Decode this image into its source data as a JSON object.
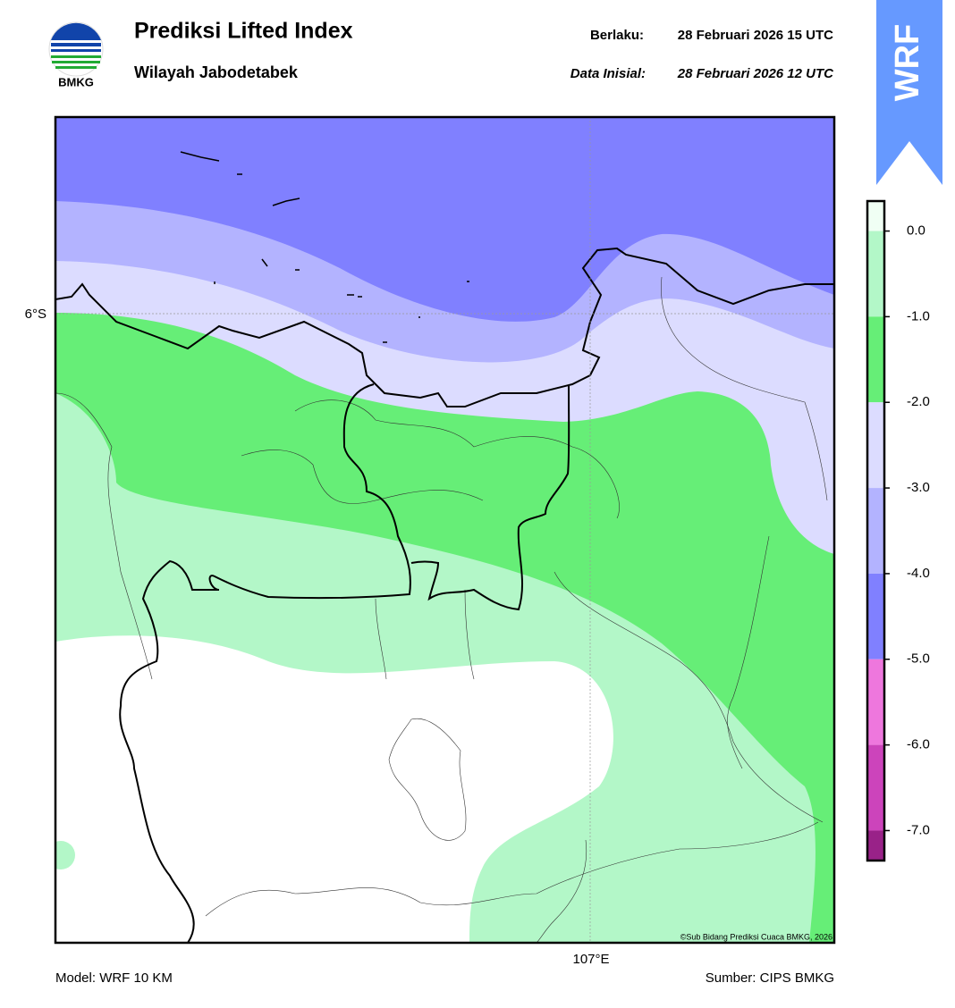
{
  "header": {
    "title": "Prediksi Lifted Index",
    "subtitle": "Wilayah Jabodetabek",
    "logo_text": "BMKG",
    "valid_label": "Berlaku:",
    "valid_time": "28 Februari 2026 15 UTC",
    "init_label": "Data Inisial:",
    "init_time": "28 Februari 2026 12 UTC",
    "badge": "WRF"
  },
  "map": {
    "lat_label": "6°S",
    "lon_label": "107°E",
    "copyright": "©Sub Bidang Prediksi Cuaca BMKG, 2026"
  },
  "colorbar": {
    "bins": [
      0.35,
      0,
      -1,
      -2,
      -3,
      -4,
      -5,
      -6,
      -7,
      -7.35
    ],
    "colors": [
      "#f0fff4",
      "#b3f7c8",
      "#66ee77",
      "#dcdcff",
      "#b3b3ff",
      "#8080ff",
      "#ee77dd",
      "#cc44bb",
      "#992288"
    ],
    "ticks": [
      {
        "value": 0,
        "label": "0.0"
      },
      {
        "value": -1,
        "label": "-1.0"
      },
      {
        "value": -2,
        "label": "-2.0"
      },
      {
        "value": -3,
        "label": "-3.0"
      },
      {
        "value": -4,
        "label": "-4.0"
      },
      {
        "value": -5,
        "label": "-5.0"
      },
      {
        "value": -6,
        "label": "-6.0"
      },
      {
        "value": -7,
        "label": "-7.0"
      }
    ]
  },
  "footer": {
    "model": "Model: WRF 10 KM",
    "source": "Sumber: CIPS BMKG"
  }
}
